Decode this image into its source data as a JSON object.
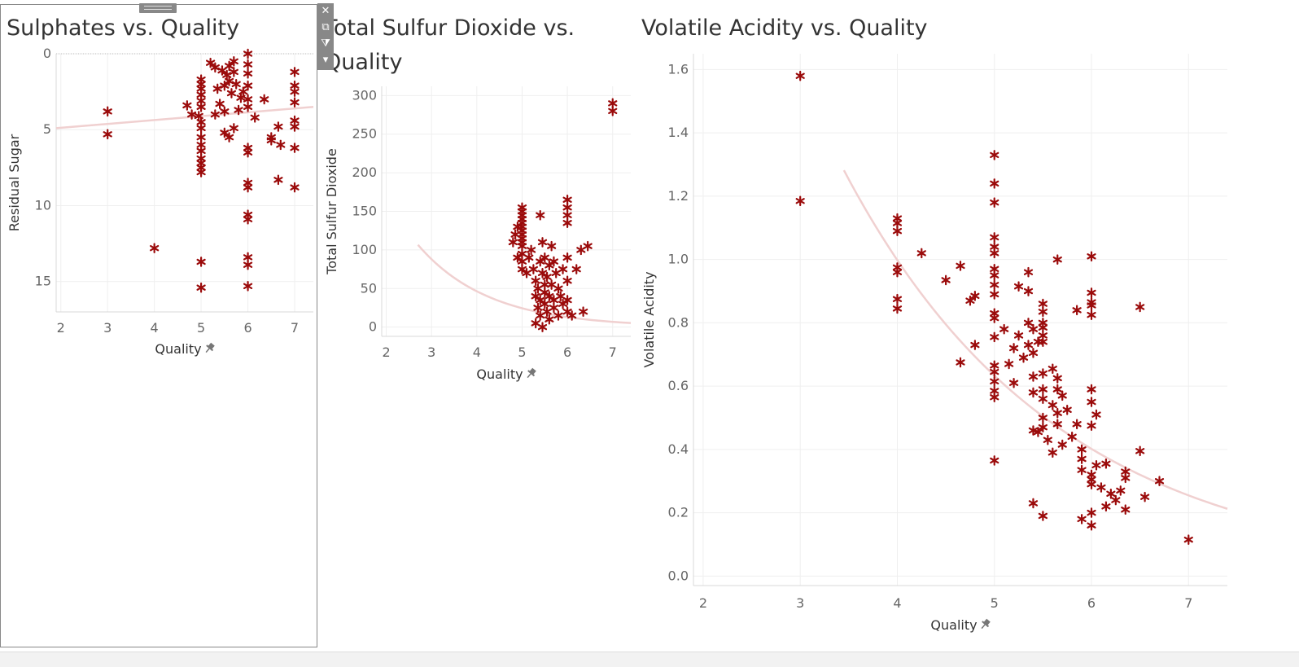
{
  "chart_data": [
    {
      "type": "scatter",
      "title": "Sulphates vs. Quality",
      "xlabel": "Quality",
      "ylabel": "Residual Sugar",
      "xlim": [
        1.9,
        7.4
      ],
      "ylim": [
        0,
        17
      ],
      "y_reversed": true,
      "xticks": [
        2,
        3,
        4,
        5,
        6,
        7
      ],
      "yticks": [
        0,
        5,
        10,
        15
      ],
      "trend": [
        [
          1.9,
          4.9
        ],
        [
          7.4,
          3.5
        ]
      ],
      "points": [
        [
          3,
          3.8
        ],
        [
          3,
          5.3
        ],
        [
          4,
          12.8
        ],
        [
          4.7,
          3.4
        ],
        [
          4.8,
          4.0
        ],
        [
          4.95,
          4.1
        ],
        [
          5.0,
          1.7
        ],
        [
          5.0,
          2.0
        ],
        [
          5.0,
          2.3
        ],
        [
          5.0,
          2.7
        ],
        [
          5.0,
          3.1
        ],
        [
          5.0,
          3.5
        ],
        [
          5.0,
          4.5
        ],
        [
          5.0,
          4.9
        ],
        [
          5.0,
          5.5
        ],
        [
          5.0,
          6.0
        ],
        [
          5.0,
          6.4
        ],
        [
          5.0,
          6.9
        ],
        [
          5.0,
          7.2
        ],
        [
          5.0,
          7.5
        ],
        [
          5.0,
          7.8
        ],
        [
          5.0,
          13.7
        ],
        [
          5.0,
          15.4
        ],
        [
          5.2,
          0.6
        ],
        [
          5.3,
          0.9
        ],
        [
          5.35,
          2.3
        ],
        [
          5.4,
          3.3
        ],
        [
          5.45,
          1.1
        ],
        [
          5.5,
          2.1
        ],
        [
          5.5,
          3.8
        ],
        [
          5.55,
          1.4
        ],
        [
          5.6,
          0.8
        ],
        [
          5.6,
          1.8
        ],
        [
          5.65,
          2.6
        ],
        [
          5.7,
          0.5
        ],
        [
          5.7,
          1.2
        ],
        [
          5.75,
          2.0
        ],
        [
          5.8,
          3.7
        ],
        [
          5.85,
          2.9
        ],
        [
          5.9,
          2.5
        ],
        [
          5.3,
          4.0
        ],
        [
          5.5,
          5.2
        ],
        [
          5.6,
          5.5
        ],
        [
          5.7,
          4.9
        ],
        [
          6.0,
          0.0
        ],
        [
          6.0,
          0.7
        ],
        [
          6.0,
          1.3
        ],
        [
          6.0,
          2.1
        ],
        [
          6.0,
          3.0
        ],
        [
          6.0,
          3.5
        ],
        [
          6.0,
          6.2
        ],
        [
          6.0,
          6.5
        ],
        [
          6.0,
          8.5
        ],
        [
          6.0,
          8.8
        ],
        [
          6.0,
          10.6
        ],
        [
          6.0,
          10.9
        ],
        [
          6.0,
          13.4
        ],
        [
          6.0,
          13.9
        ],
        [
          6.0,
          15.3
        ],
        [
          6.15,
          4.2
        ],
        [
          6.35,
          3.0
        ],
        [
          6.5,
          5.5
        ],
        [
          6.5,
          5.7
        ],
        [
          6.65,
          4.8
        ],
        [
          6.65,
          8.3
        ],
        [
          6.7,
          6.0
        ],
        [
          7.0,
          1.2
        ],
        [
          7.0,
          2.1
        ],
        [
          7.0,
          2.5
        ],
        [
          7.0,
          3.2
        ],
        [
          7.0,
          4.4
        ],
        [
          7.0,
          4.8
        ],
        [
          7.0,
          6.2
        ],
        [
          7.0,
          8.8
        ]
      ]
    },
    {
      "type": "scatter",
      "title": "Total Sulfur Dioxide vs. Quality",
      "xlabel": "Quality",
      "ylabel": "Total Sulfur Dioxide",
      "xlim": [
        1.9,
        7.4
      ],
      "ylim": [
        -12,
        312
      ],
      "xticks": [
        2,
        3,
        4,
        5,
        6,
        7
      ],
      "yticks": [
        0,
        50,
        100,
        150,
        200,
        250,
        300
      ],
      "trend_exp": {
        "a": 600,
        "b": -0.64,
        "x_start": 2.7,
        "x_end": 7.4
      },
      "points": [
        [
          4.8,
          110
        ],
        [
          4.85,
          120
        ],
        [
          4.9,
          90
        ],
        [
          4.9,
          130
        ],
        [
          5.0,
          155
        ],
        [
          5.0,
          150
        ],
        [
          5.0,
          145
        ],
        [
          5.0,
          140
        ],
        [
          5.0,
          135
        ],
        [
          5.0,
          130
        ],
        [
          5.0,
          125
        ],
        [
          5.0,
          120
        ],
        [
          5.0,
          115
        ],
        [
          5.0,
          110
        ],
        [
          5.0,
          105
        ],
        [
          5.0,
          95
        ],
        [
          5.0,
          85
        ],
        [
          5.0,
          75
        ],
        [
          5.1,
          70
        ],
        [
          5.15,
          90
        ],
        [
          5.2,
          100
        ],
        [
          5.25,
          75
        ],
        [
          5.3,
          60
        ],
        [
          5.3,
          40
        ],
        [
          5.3,
          5
        ],
        [
          5.35,
          50
        ],
        [
          5.35,
          25
        ],
        [
          5.4,
          145
        ],
        [
          5.4,
          85
        ],
        [
          5.4,
          35
        ],
        [
          5.4,
          15
        ],
        [
          5.45,
          110
        ],
        [
          5.45,
          70
        ],
        [
          5.45,
          0
        ],
        [
          5.5,
          90
        ],
        [
          5.5,
          55
        ],
        [
          5.5,
          45
        ],
        [
          5.5,
          30
        ],
        [
          5.55,
          20
        ],
        [
          5.55,
          65
        ],
        [
          5.6,
          80
        ],
        [
          5.6,
          40
        ],
        [
          5.6,
          10
        ],
        [
          5.65,
          105
        ],
        [
          5.65,
          55
        ],
        [
          5.7,
          85
        ],
        [
          5.7,
          35
        ],
        [
          5.7,
          25
        ],
        [
          5.75,
          70
        ],
        [
          5.8,
          50
        ],
        [
          5.8,
          15
        ],
        [
          5.85,
          40
        ],
        [
          5.9,
          75
        ],
        [
          5.9,
          30
        ],
        [
          6.0,
          165
        ],
        [
          6.0,
          155
        ],
        [
          6.0,
          145
        ],
        [
          6.0,
          135
        ],
        [
          6.0,
          90
        ],
        [
          6.0,
          60
        ],
        [
          6.0,
          35
        ],
        [
          6.0,
          20
        ],
        [
          6.1,
          15
        ],
        [
          6.2,
          75
        ],
        [
          6.3,
          100
        ],
        [
          6.35,
          20
        ],
        [
          6.45,
          105
        ],
        [
          7.0,
          290
        ],
        [
          7.0,
          280
        ]
      ]
    },
    {
      "type": "scatter",
      "title": "Volatile Acidity vs. Quality",
      "xlabel": "Quality",
      "ylabel": "Volatile Acidity",
      "xlim": [
        1.9,
        7.4
      ],
      "ylim": [
        -0.03,
        1.65
      ],
      "xticks": [
        2,
        3,
        4,
        5,
        6,
        7
      ],
      "yticks": [
        0.0,
        0.2,
        0.4,
        0.6,
        0.8,
        1.0,
        1.2,
        1.4,
        1.6
      ],
      "trend_exp": {
        "a": 6.16,
        "b": -0.455,
        "x_start": 3.45,
        "x_end": 7.4
      },
      "points": [
        [
          3,
          1.58
        ],
        [
          3,
          1.185
        ],
        [
          4,
          1.13
        ],
        [
          4,
          1.115
        ],
        [
          4,
          1.09
        ],
        [
          4,
          0.975
        ],
        [
          4,
          0.96
        ],
        [
          4,
          0.875
        ],
        [
          4,
          0.845
        ],
        [
          4.25,
          1.02
        ],
        [
          4.5,
          0.935
        ],
        [
          4.65,
          0.98
        ],
        [
          4.65,
          0.675
        ],
        [
          4.75,
          0.87
        ],
        [
          4.8,
          0.885
        ],
        [
          4.8,
          0.73
        ],
        [
          5.0,
          1.33
        ],
        [
          5.0,
          1.24
        ],
        [
          5.0,
          1.18
        ],
        [
          5.0,
          1.07
        ],
        [
          5.0,
          1.04
        ],
        [
          5.0,
          1.02
        ],
        [
          5.0,
          0.97
        ],
        [
          5.0,
          0.95
        ],
        [
          5.0,
          0.92
        ],
        [
          5.0,
          0.89
        ],
        [
          5.0,
          0.83
        ],
        [
          5.0,
          0.815
        ],
        [
          5.0,
          0.755
        ],
        [
          5.0,
          0.665
        ],
        [
          5.0,
          0.645
        ],
        [
          5.0,
          0.615
        ],
        [
          5.0,
          0.585
        ],
        [
          5.0,
          0.565
        ],
        [
          5.0,
          0.365
        ],
        [
          5.1,
          0.78
        ],
        [
          5.15,
          0.67
        ],
        [
          5.2,
          0.61
        ],
        [
          5.2,
          0.72
        ],
        [
          5.25,
          0.76
        ],
        [
          5.25,
          0.915
        ],
        [
          5.3,
          0.69
        ],
        [
          5.35,
          0.96
        ],
        [
          5.35,
          0.9
        ],
        [
          5.35,
          0.8
        ],
        [
          5.35,
          0.73
        ],
        [
          5.4,
          0.78
        ],
        [
          5.4,
          0.705
        ],
        [
          5.4,
          0.63
        ],
        [
          5.4,
          0.58
        ],
        [
          5.4,
          0.46
        ],
        [
          5.4,
          0.23
        ],
        [
          5.45,
          0.74
        ],
        [
          5.45,
          0.455
        ],
        [
          5.5,
          0.86
        ],
        [
          5.5,
          0.835
        ],
        [
          5.5,
          0.8
        ],
        [
          5.5,
          0.785
        ],
        [
          5.5,
          0.76
        ],
        [
          5.5,
          0.74
        ],
        [
          5.5,
          0.64
        ],
        [
          5.5,
          0.59
        ],
        [
          5.5,
          0.56
        ],
        [
          5.5,
          0.5
        ],
        [
          5.5,
          0.47
        ],
        [
          5.5,
          0.19
        ],
        [
          5.55,
          0.43
        ],
        [
          5.6,
          0.655
        ],
        [
          5.6,
          0.54
        ],
        [
          5.6,
          0.39
        ],
        [
          5.65,
          0.625
        ],
        [
          5.65,
          0.59
        ],
        [
          5.65,
          0.515
        ],
        [
          5.65,
          0.48
        ],
        [
          5.65,
          1.0
        ],
        [
          5.7,
          0.57
        ],
        [
          5.7,
          0.415
        ],
        [
          5.75,
          0.525
        ],
        [
          5.8,
          0.44
        ],
        [
          5.85,
          0.84
        ],
        [
          5.85,
          0.48
        ],
        [
          5.9,
          0.4
        ],
        [
          5.9,
          0.37
        ],
        [
          5.9,
          0.335
        ],
        [
          5.9,
          0.18
        ],
        [
          6.0,
          1.01
        ],
        [
          6.0,
          0.895
        ],
        [
          6.0,
          0.865
        ],
        [
          6.0,
          0.855
        ],
        [
          6.0,
          0.825
        ],
        [
          6.0,
          0.59
        ],
        [
          6.0,
          0.55
        ],
        [
          6.0,
          0.475
        ],
        [
          6.0,
          0.32
        ],
        [
          6.0,
          0.305
        ],
        [
          6.0,
          0.29
        ],
        [
          6.0,
          0.2
        ],
        [
          6.0,
          0.16
        ],
        [
          6.05,
          0.51
        ],
        [
          6.05,
          0.35
        ],
        [
          6.1,
          0.28
        ],
        [
          6.15,
          0.355
        ],
        [
          6.15,
          0.22
        ],
        [
          6.2,
          0.26
        ],
        [
          6.25,
          0.24
        ],
        [
          6.3,
          0.27
        ],
        [
          6.35,
          0.33
        ],
        [
          6.35,
          0.31
        ],
        [
          6.35,
          0.21
        ],
        [
          6.5,
          0.395
        ],
        [
          6.5,
          0.85
        ],
        [
          6.55,
          0.25
        ],
        [
          6.7,
          0.3
        ],
        [
          7.0,
          0.115
        ]
      ]
    }
  ]
}
